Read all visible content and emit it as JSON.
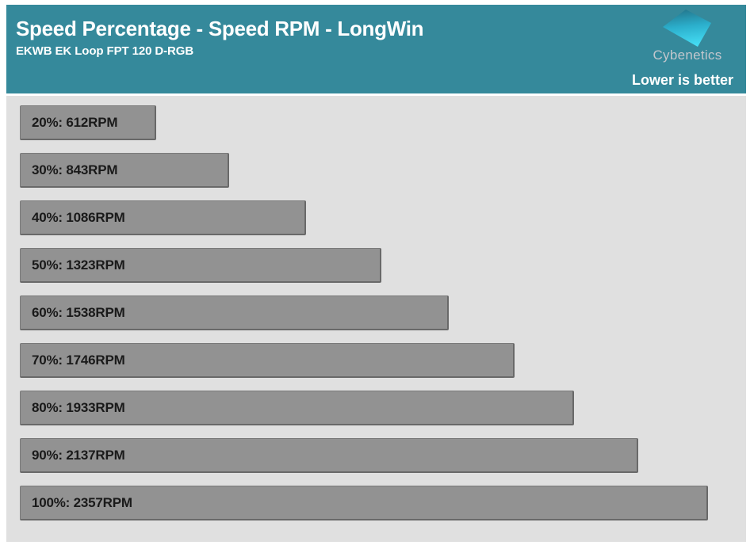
{
  "header": {
    "title": "Speed Percentage - Speed RPM - LongWin",
    "subtitle": "EKWB EK Loop FPT 120 D-RGB",
    "brand": "Cybenetics",
    "note": "Lower is better",
    "background_color": "#35899B",
    "logo_icon": "cybenetics-diamond-icon",
    "logo_colors": [
      "#23778D",
      "#2BAECB",
      "#45DEF5"
    ]
  },
  "chart_data": {
    "type": "bar",
    "orientation": "horizontal",
    "title": "Speed Percentage - Speed RPM - LongWin",
    "subtitle": "EKWB EK Loop FPT 120 D-RGB",
    "annotation": "Lower is better",
    "unit": "RPM",
    "categories": [
      "20%",
      "30%",
      "40%",
      "50%",
      "60%",
      "70%",
      "80%",
      "90%",
      "100%"
    ],
    "values": [
      612,
      843,
      1086,
      1323,
      1538,
      1746,
      1933,
      2137,
      2357
    ],
    "bar_labels": [
      "20%: 612RPM",
      "30%: 843RPM",
      "40%: 1086RPM",
      "50%: 1323RPM",
      "60%: 1538RPM",
      "70%: 1746RPM",
      "80%: 1933RPM",
      "90%: 2137RPM",
      "100%: 2357RPM"
    ],
    "xlim": [
      180,
      2357
    ],
    "grid": false,
    "legend": "none",
    "bar_color": "#929292",
    "bar_border_color": "#696969",
    "plot_background": "#E0E0E0",
    "label_color": "#1A1A1A"
  }
}
